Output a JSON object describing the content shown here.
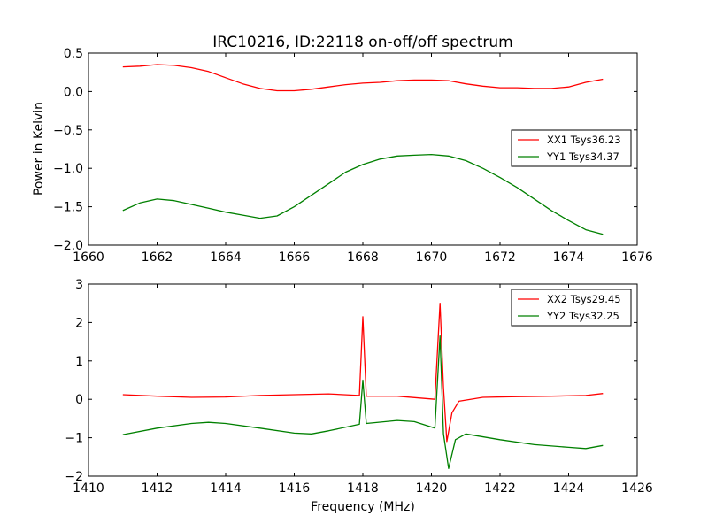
{
  "chart_data": [
    {
      "type": "line",
      "title": "IRC10216, ID:22118 on-off/off spectrum",
      "xlabel": "",
      "ylabel": "Power in Kelvin",
      "xlim": [
        1660,
        1676
      ],
      "ylim": [
        -2.0,
        0.5
      ],
      "xticks": [
        1660,
        1662,
        1664,
        1666,
        1668,
        1670,
        1672,
        1674,
        1676
      ],
      "yticks": [
        -2.0,
        -1.5,
        -1.0,
        -0.5,
        0.0,
        0.5
      ],
      "xtick_labels": [
        "1660",
        "1662",
        "1664",
        "1666",
        "1668",
        "1670",
        "1672",
        "1674",
        "1676"
      ],
      "ytick_labels": [
        "−2.0",
        "−1.5",
        "−1.0",
        "−0.5",
        "0.0",
        "0.5"
      ],
      "grid": false,
      "legend_position": "center-right",
      "series": [
        {
          "name": "XX1 Tsys36.23",
          "color": "#ff0000",
          "x": [
            1661.0,
            1661.5,
            1662.0,
            1662.5,
            1663.0,
            1663.5,
            1664.0,
            1664.5,
            1665.0,
            1665.5,
            1666.0,
            1666.5,
            1667.0,
            1667.5,
            1668.0,
            1668.5,
            1669.0,
            1669.5,
            1670.0,
            1670.5,
            1671.0,
            1671.5,
            1672.0,
            1672.5,
            1673.0,
            1673.5,
            1674.0,
            1674.5,
            1675.0
          ],
          "y": [
            0.32,
            0.33,
            0.35,
            0.34,
            0.31,
            0.26,
            0.18,
            0.1,
            0.04,
            0.01,
            0.01,
            0.03,
            0.06,
            0.09,
            0.11,
            0.12,
            0.14,
            0.15,
            0.15,
            0.14,
            0.1,
            0.07,
            0.05,
            0.05,
            0.04,
            0.04,
            0.06,
            0.12,
            0.16
          ]
        },
        {
          "name": "YY1 Tsys34.37",
          "color": "#008000",
          "x": [
            1661.0,
            1661.5,
            1662.0,
            1662.5,
            1663.0,
            1663.5,
            1664.0,
            1664.5,
            1665.0,
            1665.5,
            1666.0,
            1666.5,
            1667.0,
            1667.5,
            1668.0,
            1668.5,
            1669.0,
            1669.5,
            1670.0,
            1670.5,
            1671.0,
            1671.5,
            1672.0,
            1672.5,
            1673.0,
            1673.5,
            1674.0,
            1674.5,
            1675.0
          ],
          "y": [
            -1.55,
            -1.45,
            -1.4,
            -1.42,
            -1.47,
            -1.52,
            -1.57,
            -1.61,
            -1.65,
            -1.62,
            -1.5,
            -1.35,
            -1.2,
            -1.05,
            -0.95,
            -0.88,
            -0.84,
            -0.83,
            -0.82,
            -0.84,
            -0.9,
            -1.0,
            -1.12,
            -1.25,
            -1.4,
            -1.55,
            -1.68,
            -1.8,
            -1.86
          ]
        }
      ]
    },
    {
      "type": "line",
      "title": "",
      "xlabel": "Frequency (MHz)",
      "ylabel": "",
      "xlim": [
        1410,
        1426
      ],
      "ylim": [
        -2,
        3
      ],
      "xticks": [
        1410,
        1412,
        1414,
        1416,
        1418,
        1420,
        1422,
        1424,
        1426
      ],
      "yticks": [
        -2,
        -1,
        0,
        1,
        2,
        3
      ],
      "xtick_labels": [
        "1410",
        "1412",
        "1414",
        "1416",
        "1418",
        "1420",
        "1422",
        "1424",
        "1426"
      ],
      "ytick_labels": [
        "−2",
        "−1",
        "0",
        "1",
        "2",
        "3"
      ],
      "grid": false,
      "legend_position": "top-right",
      "series": [
        {
          "name": "XX2 Tsys29.45",
          "color": "#ff0000",
          "x": [
            1411.0,
            1412.0,
            1413.0,
            1414.0,
            1415.0,
            1416.0,
            1417.0,
            1417.9,
            1418.0,
            1418.1,
            1419.0,
            1420.1,
            1420.25,
            1420.35,
            1420.45,
            1420.6,
            1420.8,
            1421.5,
            1422.5,
            1423.5,
            1424.5,
            1425.0
          ],
          "y": [
            0.12,
            0.08,
            0.05,
            0.06,
            0.1,
            0.12,
            0.14,
            0.1,
            2.15,
            0.08,
            0.08,
            0.0,
            2.5,
            0.3,
            -1.1,
            -0.35,
            -0.05,
            0.05,
            0.07,
            0.08,
            0.1,
            0.15
          ]
        },
        {
          "name": "YY2 Tsys32.25",
          "color": "#008000",
          "x": [
            1411.0,
            1412.0,
            1413.0,
            1413.5,
            1414.0,
            1415.0,
            1416.0,
            1416.5,
            1417.0,
            1417.9,
            1418.0,
            1418.1,
            1419.0,
            1419.5,
            1420.1,
            1420.25,
            1420.35,
            1420.5,
            1420.7,
            1421.0,
            1422.0,
            1423.0,
            1424.0,
            1424.5,
            1425.0
          ],
          "y": [
            -0.92,
            -0.75,
            -0.63,
            -0.6,
            -0.63,
            -0.75,
            -0.88,
            -0.9,
            -0.82,
            -0.65,
            0.5,
            -0.63,
            -0.55,
            -0.58,
            -0.75,
            1.65,
            -0.9,
            -1.8,
            -1.05,
            -0.9,
            -1.05,
            -1.18,
            -1.25,
            -1.28,
            -1.2
          ]
        }
      ]
    }
  ]
}
